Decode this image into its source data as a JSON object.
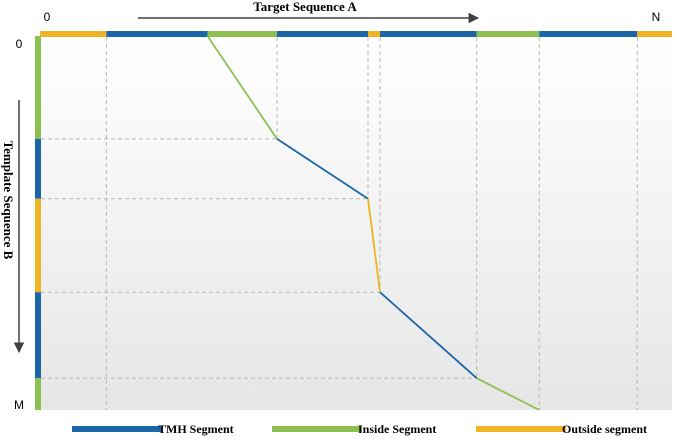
{
  "colors": {
    "tmh": "#1a66a8",
    "inside": "#8cc152",
    "outside": "#f0b323",
    "guide": "#b8b8b8",
    "arrow": "#404040",
    "panel_top": "#ffffff",
    "panel_bottom": "#e6e6e6"
  },
  "target": {
    "label": "Target Sequence A",
    "start_label": "0",
    "end_label": "N",
    "segments": [
      {
        "type": "outside",
        "from": 0,
        "to": 0.105
      },
      {
        "type": "tmh",
        "from": 0.105,
        "to": 0.265
      },
      {
        "type": "inside",
        "from": 0.265,
        "to": 0.375
      },
      {
        "type": "tmh",
        "from": 0.375,
        "to": 0.519
      },
      {
        "type": "outside",
        "from": 0.519,
        "to": 0.538
      },
      {
        "type": "tmh",
        "from": 0.538,
        "to": 0.691
      },
      {
        "type": "inside",
        "from": 0.691,
        "to": 0.79
      },
      {
        "type": "tmh",
        "from": 0.79,
        "to": 0.945
      },
      {
        "type": "outside",
        "from": 0.945,
        "to": 1.0
      }
    ]
  },
  "template": {
    "label": "Template Sequence B",
    "start_label": "0",
    "end_label": "M",
    "segments": [
      {
        "type": "inside",
        "from": 0,
        "to": 0.275
      },
      {
        "type": "tmh",
        "from": 0.275,
        "to": 0.435
      },
      {
        "type": "outside",
        "from": 0.435,
        "to": 0.685
      },
      {
        "type": "tmh",
        "from": 0.685,
        "to": 0.915
      },
      {
        "type": "inside",
        "from": 0.915,
        "to": 1.0
      }
    ]
  },
  "alignment_path": [
    {
      "a": 0.265,
      "b": 0,
      "type": "inside"
    },
    {
      "a": 0.375,
      "b": 0.275,
      "type": "tmh"
    },
    {
      "a": 0.519,
      "b": 0.435,
      "type": "outside"
    },
    {
      "a": 0.538,
      "b": 0.685,
      "type": "tmh"
    },
    {
      "a": 0.691,
      "b": 0.915,
      "type": "inside"
    },
    {
      "a": 0.79,
      "b": 1.0,
      "type": null
    }
  ],
  "legend": [
    {
      "type": "tmh",
      "label": "TMH Segment"
    },
    {
      "type": "inside",
      "label": "Inside Segment"
    },
    {
      "type": "outside",
      "label": "Outside segment"
    }
  ]
}
